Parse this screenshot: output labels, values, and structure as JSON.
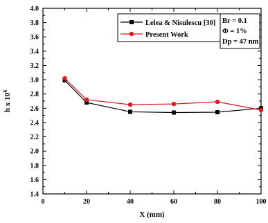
{
  "chart_data": {
    "type": "line",
    "xlabel": "X (mm)",
    "ylabel_base": "h x 10",
    "ylabel_exponent": "4",
    "xlim": [
      0,
      100
    ],
    "ylim": [
      1.4,
      4.0
    ],
    "x_ticks": [
      "0",
      "20",
      "40",
      "60",
      "80",
      "100"
    ],
    "y_ticks": [
      "1.4",
      "1.6",
      "1.8",
      "2.0",
      "2.2",
      "2.4",
      "2.6",
      "2.8",
      "3.0",
      "3.2",
      "3.4",
      "3.6",
      "3.8",
      "4.0"
    ],
    "x": [
      10,
      20,
      40,
      60,
      80,
      100
    ],
    "series": [
      {
        "name": "Lelea & Nisulescu [30]",
        "color": "#000000",
        "marker": "square",
        "values": [
          2.99,
          2.68,
          2.55,
          2.54,
          2.545,
          2.6
        ]
      },
      {
        "name": "Present Work",
        "color": "#e8141e",
        "marker": "circle",
        "values": [
          3.02,
          2.72,
          2.65,
          2.66,
          2.69,
          2.575
        ]
      }
    ],
    "annotations": [
      "Br = 0.1",
      "Φ = 1%",
      "Dp = 47 nm"
    ],
    "legend_position": "top-center",
    "grid": false
  }
}
